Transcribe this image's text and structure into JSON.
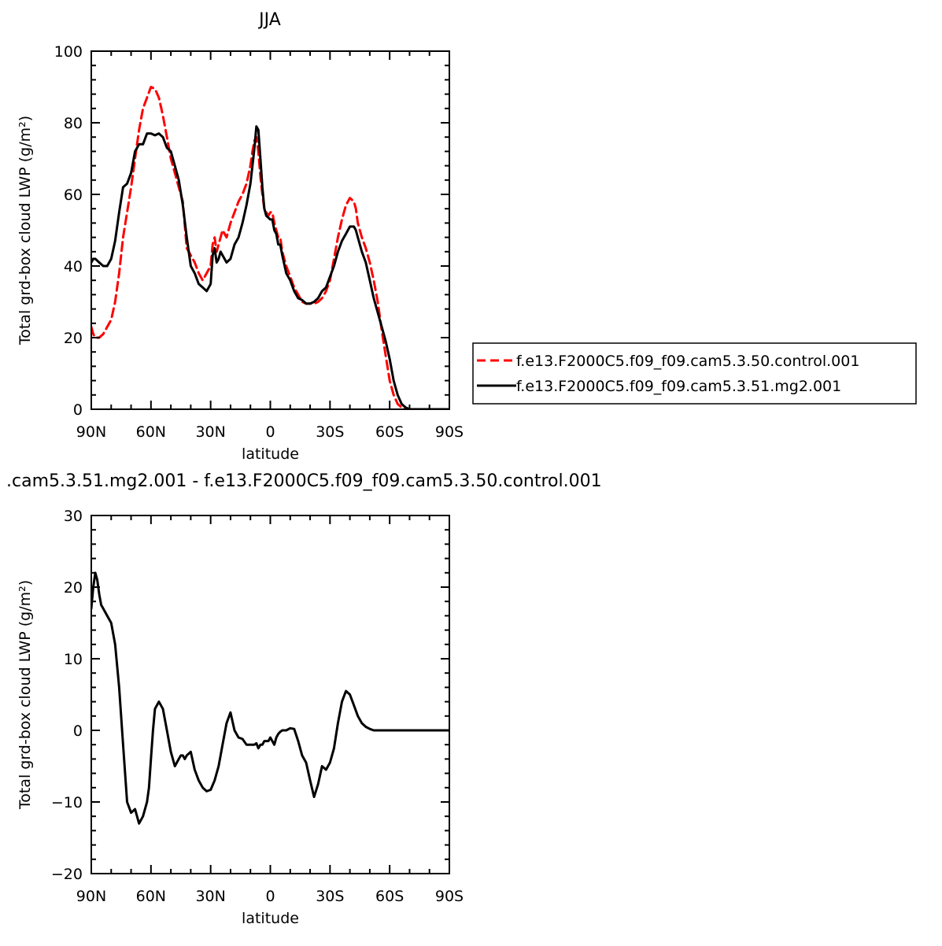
{
  "chart_data": [
    {
      "type": "line",
      "title": "JJA",
      "xlabel": "latitude",
      "ylabel": "Total grd-box cloud LWP (g/m²)",
      "xlim": [
        90,
        -90
      ],
      "ylim": [
        0,
        100
      ],
      "x_ticks": [
        90,
        60,
        30,
        0,
        -30,
        -60,
        -90
      ],
      "x_tick_labels": [
        "90N",
        "60N",
        "30N",
        "0",
        "30S",
        "60S",
        "90S"
      ],
      "y_ticks": [
        0,
        20,
        40,
        60,
        80,
        100
      ],
      "y_tick_labels": [
        "0",
        "20",
        "40",
        "60",
        "80",
        "100"
      ],
      "legend_position": "right",
      "series": [
        {
          "name": "f.e13.F2000C5.f09_f09.cam5.3.50.control.001",
          "color": "#ff0000",
          "dash": "dashed",
          "x": [
            90,
            89,
            88,
            86,
            84,
            82,
            80,
            78,
            76,
            74,
            72,
            70,
            68,
            66,
            64,
            62,
            60,
            58,
            56,
            54,
            52,
            50,
            48,
            46,
            44,
            42,
            40,
            38,
            36,
            34,
            32,
            30,
            29,
            28,
            27,
            26,
            25,
            24,
            22,
            20,
            18,
            16,
            14,
            12,
            10,
            9,
            8,
            7,
            6,
            5,
            4,
            3,
            2,
            1,
            0,
            -1,
            -2,
            -3,
            -4,
            -5,
            -6,
            -8,
            -10,
            -12,
            -14,
            -16,
            -18,
            -20,
            -22,
            -24,
            -26,
            -28,
            -30,
            -32,
            -34,
            -36,
            -38,
            -40,
            -42,
            -43,
            -44,
            -46,
            -48,
            -50,
            -52,
            -54,
            -56,
            -58,
            -60,
            -62,
            -64,
            -66,
            -68,
            -70,
            -72,
            -74,
            -76,
            -78,
            -80,
            -82,
            -84,
            -86,
            -88,
            -90
          ],
          "values": [
            23,
            21,
            20,
            20,
            21,
            23,
            25,
            30,
            38,
            48,
            55,
            62,
            70,
            78,
            84,
            87,
            90,
            89.5,
            87,
            82,
            76,
            70,
            66,
            62,
            58,
            45,
            43,
            41,
            38,
            36,
            38,
            40,
            46,
            48,
            44,
            46,
            48,
            50,
            48,
            52,
            55,
            58,
            60,
            63,
            68,
            72,
            75,
            76,
            72,
            65,
            60,
            56,
            55,
            54,
            55,
            55,
            52,
            50,
            48,
            48,
            44,
            40,
            37,
            34,
            32,
            30,
            29.5,
            29.5,
            29.5,
            30,
            31,
            33,
            36,
            42,
            48,
            53,
            57,
            59,
            58,
            56,
            52,
            48,
            45,
            41,
            36,
            30,
            22,
            15,
            8,
            4,
            1.5,
            0.5,
            0.2,
            0,
            0,
            0,
            0,
            0,
            0,
            0,
            0,
            0,
            0,
            0
          ]
        },
        {
          "name": "f.e13.F2000C5.f09_f09.cam5.3.51.mg2.001",
          "color": "#000000",
          "dash": "solid",
          "x": [
            90,
            89,
            88,
            86,
            84,
            82,
            80,
            78,
            76,
            74,
            72,
            70,
            68,
            66,
            64,
            62,
            60,
            58,
            56,
            54,
            52,
            50,
            48,
            46,
            44,
            42,
            40,
            38,
            36,
            34,
            32,
            30,
            29,
            28,
            27,
            26,
            25,
            24,
            22,
            20,
            18,
            16,
            14,
            12,
            10,
            9,
            8,
            7,
            6,
            5,
            4,
            3,
            2,
            1,
            0,
            -1,
            -2,
            -3,
            -4,
            -5,
            -6,
            -8,
            -10,
            -12,
            -14,
            -16,
            -18,
            -20,
            -22,
            -24,
            -26,
            -28,
            -30,
            -32,
            -34,
            -36,
            -38,
            -40,
            -42,
            -43,
            -44,
            -46,
            -48,
            -50,
            -52,
            -54,
            -56,
            -58,
            -60,
            -62,
            -64,
            -66,
            -68,
            -70,
            -72,
            -74,
            -76,
            -78,
            -80,
            -82,
            -84,
            -86,
            -88,
            -90
          ],
          "values": [
            41,
            42,
            42,
            41,
            40,
            40,
            42,
            47,
            55,
            62,
            63,
            66,
            72,
            74,
            74,
            77,
            77,
            76.5,
            77,
            76,
            73,
            72,
            68,
            64,
            57,
            48,
            40,
            38,
            35,
            34,
            33,
            35,
            43,
            45,
            41,
            42,
            44,
            43,
            41,
            42,
            46,
            48,
            52,
            57,
            63,
            68,
            73,
            79,
            78,
            70,
            62,
            56,
            54,
            53.5,
            53,
            53,
            50,
            49,
            46,
            46,
            43,
            38,
            36,
            33,
            31,
            30.5,
            29.5,
            29.5,
            30,
            31,
            33,
            34,
            37,
            40,
            44,
            47,
            49,
            51,
            51,
            50,
            48,
            44,
            41,
            36,
            31,
            27,
            23,
            19,
            14,
            8,
            4,
            1.5,
            0.5,
            0,
            0,
            0,
            0,
            0,
            0,
            0,
            0,
            0,
            0,
            0
          ]
        }
      ]
    },
    {
      "type": "line",
      "title": ".cam5.3.51.mg2.001 - f.e13.F2000C5.f09_f09.cam5.3.50.control.001",
      "xlabel": "latitude",
      "ylabel": "Total grd-box cloud LWP (g/m²)",
      "xlim": [
        90,
        -90
      ],
      "ylim": [
        -20,
        30
      ],
      "x_ticks": [
        90,
        60,
        30,
        0,
        -30,
        -60,
        -90
      ],
      "x_tick_labels": [
        "90N",
        "60N",
        "30N",
        "0",
        "30S",
        "60S",
        "90S"
      ],
      "y_ticks": [
        -20,
        -10,
        0,
        10,
        20,
        30
      ],
      "y_tick_labels": [
        "−20",
        "−10",
        "0",
        "10",
        "20",
        "30"
      ],
      "series": [
        {
          "color": "#000000",
          "dash": "solid",
          "x": [
            90,
            89,
            88,
            87,
            86,
            85,
            84,
            82,
            80,
            78,
            76,
            74,
            72,
            70,
            68,
            66,
            64,
            62,
            61,
            60,
            59,
            58,
            56,
            54,
            52,
            50,
            48,
            46,
            45,
            44,
            43,
            42,
            40,
            38,
            36,
            34,
            32,
            30,
            28,
            26,
            24,
            22,
            20,
            18,
            16,
            14,
            12,
            10,
            8,
            7,
            6,
            5,
            4,
            3,
            2,
            1,
            0,
            -1,
            -2,
            -3,
            -4,
            -5,
            -6,
            -8,
            -10,
            -12,
            -14,
            -16,
            -18,
            -20,
            -22,
            -24,
            -26,
            -28,
            -30,
            -32,
            -34,
            -36,
            -38,
            -40,
            -42,
            -44,
            -46,
            -48,
            -50,
            -52,
            -54,
            -56,
            -58,
            -60,
            -62,
            -64,
            -66,
            -68,
            -70,
            -72,
            -74,
            -76,
            -78,
            -80,
            -82,
            -84,
            -86,
            -88,
            -90
          ],
          "values": [
            17,
            20,
            22,
            21,
            19,
            17.5,
            17,
            16,
            15,
            12,
            6,
            -2,
            -10,
            -11.5,
            -11,
            -13,
            -12,
            -10,
            -8,
            -4,
            0,
            3,
            4,
            3,
            0,
            -3,
            -5,
            -4,
            -3.5,
            -3.5,
            -4,
            -3.5,
            -3,
            -5.5,
            -7,
            -8,
            -8.5,
            -8.3,
            -7,
            -5,
            -2,
            1,
            2.5,
            0,
            -1,
            -1.2,
            -2,
            -2,
            -2,
            -1.8,
            -2.5,
            -2,
            -2,
            -1.5,
            -1.5,
            -1.5,
            -1,
            -1.5,
            -2,
            -1,
            -0.5,
            -0.2,
            0,
            0,
            0.3,
            0.2,
            -1.5,
            -3.5,
            -4.5,
            -7,
            -9.3,
            -7.5,
            -5,
            -5.5,
            -4.5,
            -2.5,
            1,
            4,
            5.5,
            5,
            3.5,
            2,
            1,
            0.5,
            0.2,
            0,
            0,
            0,
            0,
            0,
            0,
            0,
            0,
            0,
            0,
            0,
            0,
            0,
            0,
            0,
            0,
            0,
            0,
            0,
            0
          ]
        }
      ]
    }
  ]
}
